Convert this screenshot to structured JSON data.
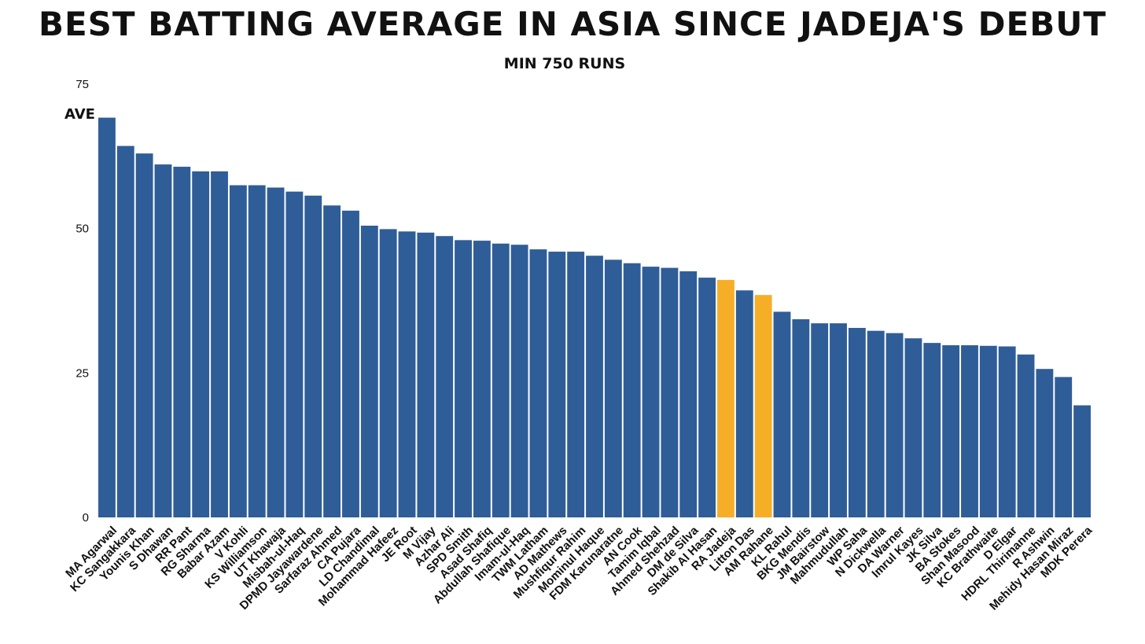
{
  "chart_data": {
    "type": "bar",
    "title": "Best Batting Average in Asia since Jadeja's Debut",
    "subtitle": "Min 750 Runs",
    "ylabel": "AVE",
    "xlabel": "",
    "ylim": [
      0,
      75
    ],
    "yticks": [
      "0",
      "25",
      "50",
      "75"
    ],
    "grid": false,
    "colors": {
      "default": "#2f5d98",
      "highlight": "#f7ae27"
    },
    "highlighted": [
      "RA Jadeja",
      "AM Rahane"
    ],
    "categories": [
      "MA Agarwal",
      "KC Sangakkara",
      "Younis Khan",
      "S Dhawan",
      "RR Pant",
      "RG Sharma",
      "Babar Azam",
      "V Kohli",
      "KS Williamson",
      "UT Khawaja",
      "Misbah-ul-Haq",
      "DPMD Jayawardene",
      "Sarfaraz Ahmed",
      "CA Pujara",
      "LD Chandimal",
      "Mohammad Hafeez",
      "JE Root",
      "M Vijay",
      "Azhar Ali",
      "SPD Smith",
      "Asad Shafiq",
      "Abdullah Shafique",
      "Imam-ul-Haq",
      "TWM Latham",
      "AD Mathews",
      "Mushfiqur Rahim",
      "Mominul Haque",
      "FDM Karunaratne",
      "AN Cook",
      "Tamim Iqbal",
      "Ahmed Shehzad",
      "DM de Silva",
      "Shakib Al Hasan",
      "RA Jadeja",
      "Litton Das",
      "AM Rahane",
      "KL Rahul",
      "BKG Mendis",
      "JM Bairstow",
      "Mahmudullah",
      "WP Saha",
      "N Dickwella",
      "DA Warner",
      "Imrul Kayes",
      "JK Silva",
      "BA Stokes",
      "Shan Masood",
      "KC Brathwaite",
      "D Elgar",
      "HDRL Thirimanne",
      "R Ashwin",
      "Mehidy Hasan Miraz",
      "MDK Perera"
    ],
    "values": [
      69.2,
      64.3,
      63.0,
      61.1,
      60.7,
      59.9,
      59.9,
      57.5,
      57.5,
      57.1,
      56.4,
      55.7,
      54.0,
      53.1,
      50.5,
      49.9,
      49.5,
      49.3,
      48.7,
      48.0,
      47.9,
      47.4,
      47.2,
      46.4,
      46.0,
      46.0,
      45.3,
      44.6,
      44.0,
      43.4,
      43.2,
      42.6,
      41.5,
      41.1,
      39.3,
      38.5,
      35.6,
      34.3,
      33.6,
      33.6,
      32.8,
      32.3,
      31.9,
      31.0,
      30.2,
      29.8,
      29.8,
      29.7,
      29.6,
      28.2,
      25.7,
      24.3,
      19.4
    ]
  }
}
